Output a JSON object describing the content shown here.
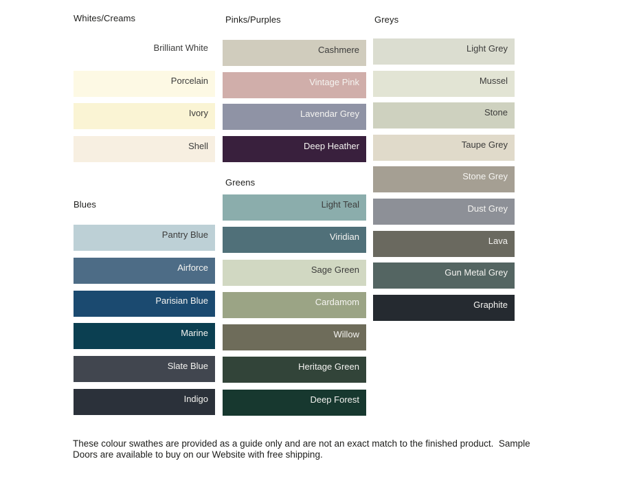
{
  "sections": {
    "whites": {
      "title": "Whites/Creams",
      "swatches": [
        {
          "name": "Brilliant White",
          "color": "#FFFFFF",
          "text": "dark"
        },
        {
          "name": "Porcelain",
          "color": "#FDF9E4",
          "text": "dark"
        },
        {
          "name": "Ivory",
          "color": "#FAF4D4",
          "text": "dark"
        },
        {
          "name": "Shell",
          "color": "#F7EFE1",
          "text": "dark"
        }
      ]
    },
    "blues": {
      "title": "Blues",
      "swatches": [
        {
          "name": "Pantry Blue",
          "color": "#BDD0D6",
          "text": "dark"
        },
        {
          "name": "Airforce",
          "color": "#4D6C86",
          "text": "light"
        },
        {
          "name": "Parisian Blue",
          "color": "#1B4A70",
          "text": "light"
        },
        {
          "name": "Marine",
          "color": "#0B3F51",
          "text": "light"
        },
        {
          "name": "Slate Blue",
          "color": "#41464F",
          "text": "light"
        },
        {
          "name": "Indigo",
          "color": "#2B313A",
          "text": "light"
        }
      ]
    },
    "pinks": {
      "title": "Pinks/Purples",
      "swatches": [
        {
          "name": "Cashmere",
          "color": "#D0CCBD",
          "text": "dark"
        },
        {
          "name": "Vintage Pink",
          "color": "#D0AEAA",
          "text": "light"
        },
        {
          "name": "Lavendar Grey",
          "color": "#8F93A5",
          "text": "light"
        },
        {
          "name": "Deep Heather",
          "color": "#39203D",
          "text": "light"
        }
      ]
    },
    "greens": {
      "title": "Greens",
      "swatches": [
        {
          "name": "Light Teal",
          "color": "#8BADAC",
          "text": "dark"
        },
        {
          "name": "Viridian",
          "color": "#507079",
          "text": "light"
        },
        {
          "name": "Sage Green",
          "color": "#D1D8C2",
          "text": "dark"
        },
        {
          "name": "Cardamom",
          "color": "#9BA485",
          "text": "light"
        },
        {
          "name": "Willow",
          "color": "#6E6C5A",
          "text": "light"
        },
        {
          "name": "Heritage Green",
          "color": "#324439",
          "text": "light"
        },
        {
          "name": "Deep Forest",
          "color": "#17382F",
          "text": "light"
        }
      ]
    },
    "greys": {
      "title": "Greys",
      "swatches": [
        {
          "name": "Light Grey",
          "color": "#DBDDD0",
          "text": "dark"
        },
        {
          "name": "Mussel",
          "color": "#E2E4D4",
          "text": "dark"
        },
        {
          "name": "Stone",
          "color": "#CED1BF",
          "text": "dark"
        },
        {
          "name": "Taupe Grey",
          "color": "#E0DACA",
          "text": "dark"
        },
        {
          "name": "Stone Grey",
          "color": "#A59F93",
          "text": "light"
        },
        {
          "name": "Dust Grey",
          "color": "#8D9097",
          "text": "light"
        },
        {
          "name": "Lava",
          "color": "#6A695F",
          "text": "light"
        },
        {
          "name": "Gun Metal Grey",
          "color": "#546562",
          "text": "light"
        },
        {
          "name": "Graphite",
          "color": "#252A30",
          "text": "light"
        }
      ]
    }
  },
  "footer": {
    "lines": [
      "These colour swathes are provided as a guide only and are not an exact match to the finished product.  Sample",
      "Doors are available to buy on our Website with free shipping."
    ]
  },
  "colors": {
    "label_dark": "#3C3C3B",
    "label_light": "#F5F4F1",
    "heading": "#1D1D1B",
    "background": "#FFFFFF"
  }
}
